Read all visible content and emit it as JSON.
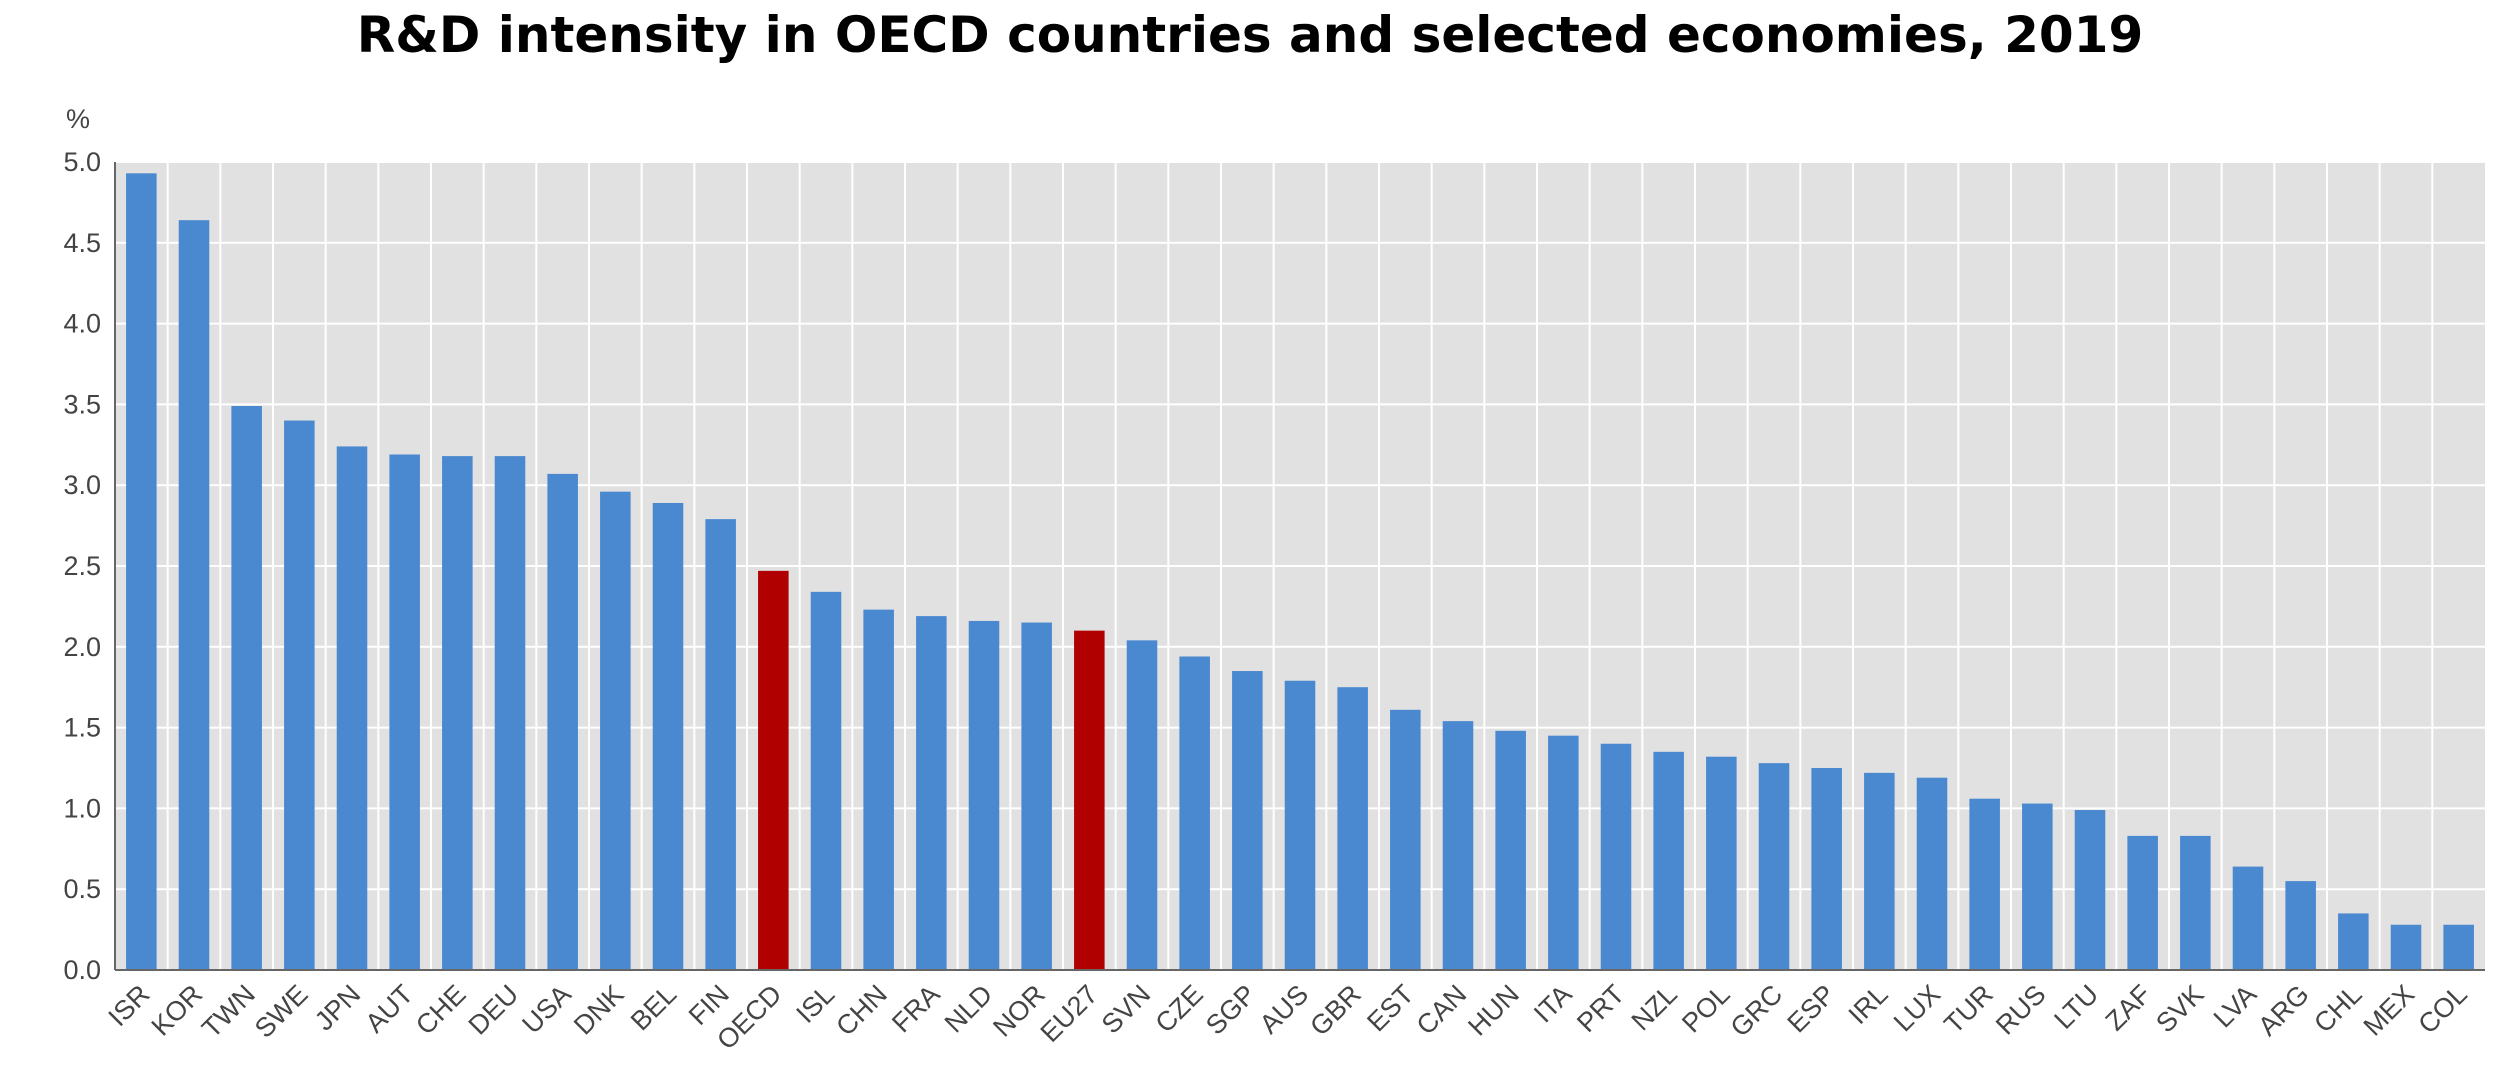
{
  "chart_data": {
    "type": "bar",
    "title": "R&D intensity in OECD countries and selected economies, 2019",
    "ylabel": "%",
    "xlabel": "",
    "ylim": [
      0,
      5
    ],
    "yticks": [
      "0.0",
      "0.5",
      "1.0",
      "1.5",
      "2.0",
      "2.5",
      "3.0",
      "3.5",
      "4.0",
      "4.5",
      "5.0"
    ],
    "grid": true,
    "categories": [
      "ISR",
      "KOR",
      "TWN",
      "SWE",
      "JPN",
      "AUT",
      "CHE",
      "DEU",
      "USA",
      "DNK",
      "BEL",
      "FIN",
      "OECD",
      "ISL",
      "CHN",
      "FRA",
      "NLD",
      "NOR",
      "EU27",
      "SVN",
      "CZE",
      "SGP",
      "AUS",
      "GBR",
      "EST",
      "CAN",
      "HUN",
      "ITA",
      "PRT",
      "NZL",
      "POL",
      "GRC",
      "ESP",
      "IRL",
      "LUX",
      "TUR",
      "RUS",
      "LTU",
      "ZAF",
      "SVK",
      "LVA",
      "ARG",
      "CHL",
      "MEX",
      "COL"
    ],
    "values": [
      4.93,
      4.64,
      3.49,
      3.4,
      3.24,
      3.19,
      3.18,
      3.18,
      3.07,
      2.96,
      2.89,
      2.79,
      2.47,
      2.34,
      2.23,
      2.19,
      2.16,
      2.15,
      2.1,
      2.04,
      1.94,
      1.85,
      1.79,
      1.75,
      1.61,
      1.54,
      1.48,
      1.45,
      1.4,
      1.35,
      1.32,
      1.28,
      1.25,
      1.22,
      1.19,
      1.06,
      1.03,
      0.99,
      0.83,
      0.83,
      0.64,
      0.55,
      0.35,
      0.28,
      0.28
    ],
    "highlight": [
      "OECD",
      "EU27"
    ],
    "colors": {
      "bar": "#4a88cf",
      "highlight": "#b10000",
      "plot_bg": "#e1e1e1",
      "grid": "#ffffff",
      "axis": "#666666"
    }
  }
}
